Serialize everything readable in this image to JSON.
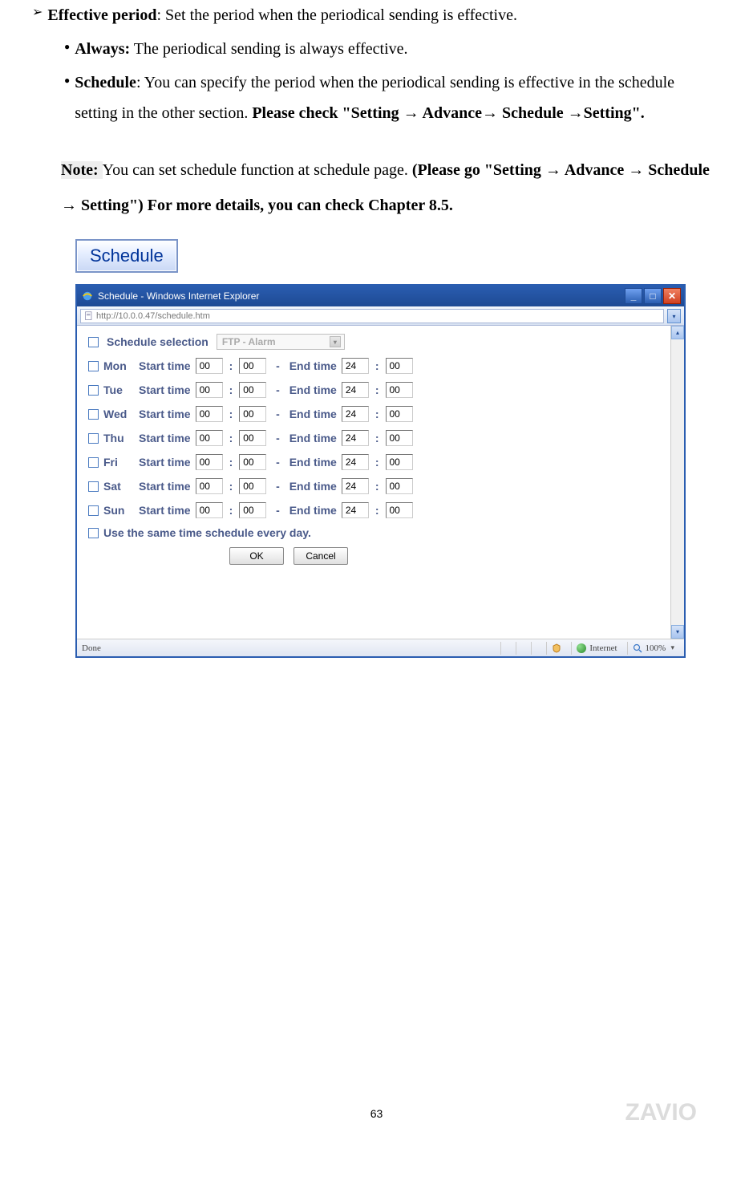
{
  "doc": {
    "effective_period_label": "Effective period",
    "effective_period_text": ": Set the period when the periodical sending is effective.",
    "always_label": "Always:",
    "always_text": " The periodical sending is always effective.",
    "schedule_label": "Schedule",
    "schedule_text_1": ": You can specify the period when the periodical sending is effective in the schedule setting in the other section. ",
    "schedule_text_2": "Please check \"Setting → Advance→ Schedule →Setting\".",
    "note_label": "Note: ",
    "note_text_1": "You can set schedule function at schedule page. ",
    "note_text_2": "(Please go \"Setting → Advance → Schedule → Setting\") For more details, you can check Chapter 8.5.",
    "schedule_button": "Schedule"
  },
  "browser": {
    "title": "Schedule - Windows Internet Explorer",
    "url": "http://10.0.0.47/schedule.htm",
    "heading": "Schedule selection",
    "dropdown_label": "FTP - Alarm",
    "start_label": "Start time",
    "end_label": "End time",
    "colon": ":",
    "dash": "-",
    "days": [
      {
        "name": "Mon",
        "sh": "00",
        "sm": "00",
        "eh": "24",
        "em": "00"
      },
      {
        "name": "Tue",
        "sh": "00",
        "sm": "00",
        "eh": "24",
        "em": "00"
      },
      {
        "name": "Wed",
        "sh": "00",
        "sm": "00",
        "eh": "24",
        "em": "00"
      },
      {
        "name": "Thu",
        "sh": "00",
        "sm": "00",
        "eh": "24",
        "em": "00"
      },
      {
        "name": "Fri",
        "sh": "00",
        "sm": "00",
        "eh": "24",
        "em": "00"
      },
      {
        "name": "Sat",
        "sh": "00",
        "sm": "00",
        "eh": "24",
        "em": "00"
      },
      {
        "name": "Sun",
        "sh": "00",
        "sm": "00",
        "eh": "24",
        "em": "00"
      }
    ],
    "same_time_label": "Use the same time schedule every day.",
    "ok": "OK",
    "cancel": "Cancel",
    "status_done": "Done",
    "status_zone": "Internet",
    "status_zoom": "100%"
  },
  "footer": {
    "page_number": "63",
    "watermark": "ZAVIO"
  },
  "style": {
    "accent": "#1e4a94",
    "label_color": "#4a5a8a"
  }
}
